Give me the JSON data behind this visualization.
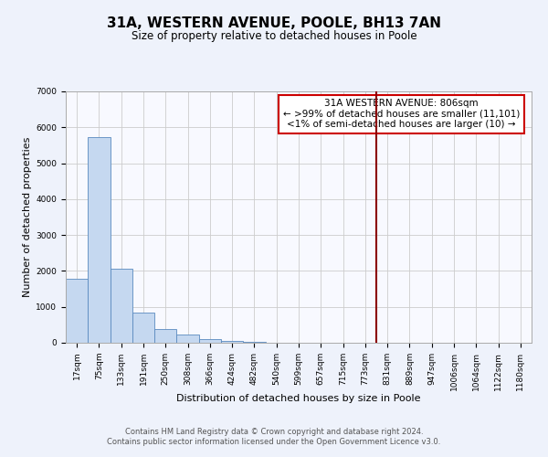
{
  "title": "31A, WESTERN AVENUE, POOLE, BH13 7AN",
  "subtitle": "Size of property relative to detached houses in Poole",
  "xlabel": "Distribution of detached houses by size in Poole",
  "ylabel": "Number of detached properties",
  "bar_labels": [
    "17sqm",
    "75sqm",
    "133sqm",
    "191sqm",
    "250sqm",
    "308sqm",
    "366sqm",
    "424sqm",
    "482sqm",
    "540sqm",
    "599sqm",
    "657sqm",
    "715sqm",
    "773sqm",
    "831sqm",
    "889sqm",
    "947sqm",
    "1006sqm",
    "1064sqm",
    "1122sqm",
    "1180sqm"
  ],
  "bar_values": [
    1780,
    5730,
    2050,
    830,
    370,
    220,
    100,
    50,
    30,
    10,
    5,
    3,
    2,
    0,
    0,
    0,
    0,
    0,
    0,
    0,
    0
  ],
  "bar_color": "#c5d8f0",
  "bar_edge_color": "#5a8abf",
  "background_color": "#eef2fb",
  "plot_bg_color": "#f8f9ff",
  "ylim": [
    0,
    7000
  ],
  "yticks": [
    0,
    1000,
    2000,
    3000,
    4000,
    5000,
    6000,
    7000
  ],
  "vline_x": 13.5,
  "vline_color": "#8b0000",
  "annotation_title": "31A WESTERN AVENUE: 806sqm",
  "annotation_line1": "← >99% of detached houses are smaller (11,101)",
  "annotation_line2": "<1% of semi-detached houses are larger (10) →",
  "footer_line1": "Contains HM Land Registry data © Crown copyright and database right 2024.",
  "footer_line2": "Contains public sector information licensed under the Open Government Licence v3.0.",
  "grid_color": "#cccccc",
  "title_fontsize": 11,
  "subtitle_fontsize": 8.5,
  "axis_label_fontsize": 8,
  "tick_fontsize": 6.5,
  "footer_fontsize": 6,
  "annotation_fontsize": 7.5
}
